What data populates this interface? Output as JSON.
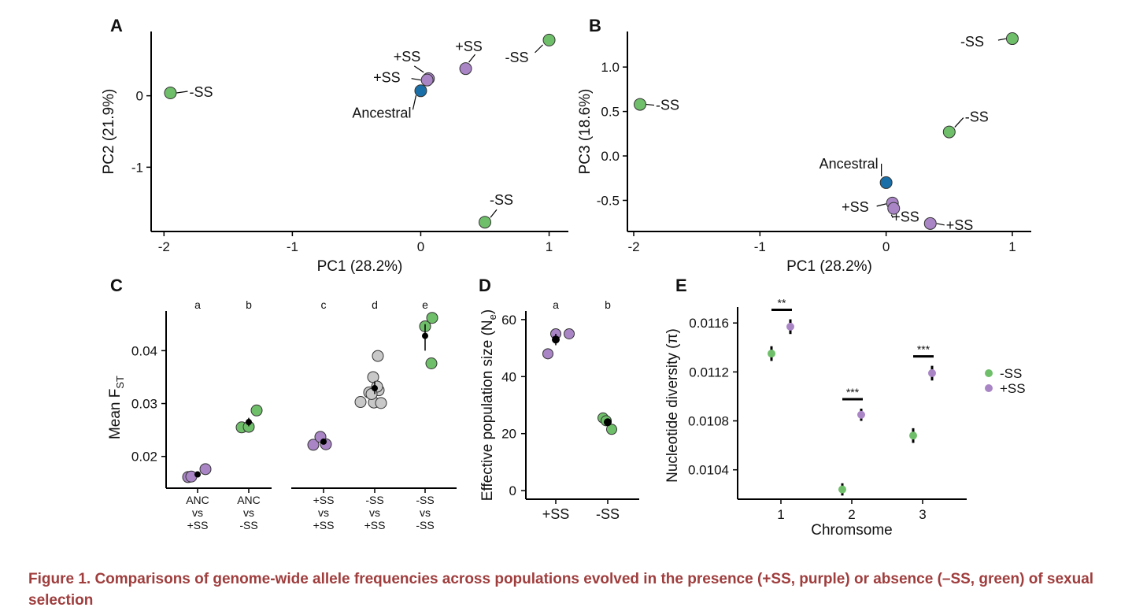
{
  "colors": {
    "minus_ss": "#6fbf6a",
    "plus_ss": "#a985c6",
    "ancestral": "#1a6fa8",
    "nonsex": "#c8c8c8",
    "mean": "#000000",
    "caption": "#a03d3d"
  },
  "caption": {
    "text": "Figure 1.  Comparisons of genome-wide allele frequencies across populations evolved in the presence (+SS, purple) or absence (–SS, green) of sexual selection"
  },
  "chart_data": [
    {
      "panel": "A",
      "type": "scatter",
      "xlabel": "PC1 (28.2%)",
      "ylabel": "PC2 (21.9%)",
      "xlim": [
        -2.1,
        1.15
      ],
      "ylim": [
        -1.9,
        0.9
      ],
      "xticks": [
        -2,
        -1,
        0,
        1
      ],
      "xtick_labels": [
        "-2",
        "-1",
        "0",
        "1"
      ],
      "yticks": [
        0,
        -1
      ],
      "ytick_labels": [
        "0",
        "-1"
      ],
      "points": [
        {
          "x": -1.95,
          "y": 0.04,
          "group": "minus_ss",
          "label": "-SS"
        },
        {
          "x": 1.0,
          "y": 0.78,
          "group": "minus_ss",
          "label": "-SS"
        },
        {
          "x": 0.5,
          "y": -1.77,
          "group": "minus_ss",
          "label": "-SS"
        },
        {
          "x": 0.35,
          "y": 0.38,
          "group": "plus_ss",
          "label": "+SS"
        },
        {
          "x": 0.06,
          "y": 0.24,
          "group": "plus_ss",
          "label": "+SS"
        },
        {
          "x": 0.05,
          "y": 0.22,
          "group": "plus_ss",
          "label": "+SS"
        },
        {
          "x": 0.0,
          "y": 0.07,
          "group": "ancestral",
          "label": "Ancestral"
        }
      ]
    },
    {
      "panel": "B",
      "type": "scatter",
      "xlabel": "PC1 (28.2%)",
      "ylabel": "PC3 (18.6%)",
      "xlim": [
        -2.05,
        1.15
      ],
      "ylim": [
        -0.85,
        1.4
      ],
      "xticks": [
        -2,
        -1,
        0,
        1
      ],
      "xtick_labels": [
        "-2",
        "-1",
        "0",
        "1"
      ],
      "yticks": [
        1.0,
        0.5,
        0.0,
        -0.5
      ],
      "ytick_labels": [
        "1.0",
        "0.5",
        "0.0",
        "-0.5"
      ],
      "points": [
        {
          "x": -1.95,
          "y": 0.58,
          "group": "minus_ss",
          "label": "-SS"
        },
        {
          "x": 1.0,
          "y": 1.32,
          "group": "minus_ss",
          "label": "-SS"
        },
        {
          "x": 0.5,
          "y": 0.27,
          "group": "minus_ss",
          "label": "-SS"
        },
        {
          "x": 0.05,
          "y": -0.53,
          "group": "plus_ss",
          "label": "+SS"
        },
        {
          "x": 0.06,
          "y": -0.59,
          "group": "plus_ss",
          "label": "+SS"
        },
        {
          "x": 0.35,
          "y": -0.76,
          "group": "plus_ss",
          "label": "+SS"
        },
        {
          "x": 0.0,
          "y": -0.3,
          "group": "ancestral",
          "label": "Ancestral"
        }
      ]
    },
    {
      "panel": "C",
      "type": "scatter",
      "ylabel": "Mean F",
      "ylabel_sub": "ST",
      "ylim": [
        0.014,
        0.0475
      ],
      "yticks": [
        0.02,
        0.03,
        0.04
      ],
      "ytick_labels": [
        "0.02",
        "0.03",
        "0.04"
      ],
      "categories": [
        {
          "label": [
            "ANC",
            "vs",
            "+SS"
          ],
          "letter": "a",
          "mean": 0.0166,
          "err": [
            0.0162,
            0.017
          ],
          "points": [
            {
              "v": 0.0161,
              "g": "plus_ss"
            },
            {
              "v": 0.0162,
              "g": "plus_ss"
            },
            {
              "v": 0.0176,
              "g": "plus_ss"
            }
          ]
        },
        {
          "label": [
            "ANC",
            "vs",
            "-SS"
          ],
          "letter": "b",
          "mean": 0.0265,
          "err": [
            0.0257,
            0.0273
          ],
          "points": [
            {
              "v": 0.0255,
              "g": "minus_ss"
            },
            {
              "v": 0.0256,
              "g": "minus_ss"
            },
            {
              "v": 0.0287,
              "g": "minus_ss"
            }
          ]
        },
        {
          "label": [
            "+SS",
            "vs",
            "+SS"
          ],
          "letter": "c",
          "mean": 0.0228,
          "err": [
            0.0224,
            0.0232
          ],
          "points": [
            {
              "v": 0.0222,
              "g": "plus_ss"
            },
            {
              "v": 0.0223,
              "g": "plus_ss"
            },
            {
              "v": 0.0237,
              "g": "plus_ss"
            }
          ]
        },
        {
          "label": [
            "-SS",
            "vs",
            "+SS"
          ],
          "letter": "d",
          "mean": 0.0329,
          "err": [
            0.0318,
            0.0341
          ],
          "points": [
            {
              "v": 0.039,
              "g": "nonsex"
            },
            {
              "v": 0.035,
              "g": "nonsex"
            },
            {
              "v": 0.034,
              "g": "nonsex"
            },
            {
              "v": 0.0332,
              "g": "nonsex"
            },
            {
              "v": 0.0321,
              "g": "nonsex"
            },
            {
              "v": 0.0303,
              "g": "nonsex"
            },
            {
              "v": 0.0302,
              "g": "nonsex"
            },
            {
              "v": 0.0301,
              "g": "nonsex"
            },
            {
              "v": 0.0318,
              "g": "nonsex"
            }
          ]
        },
        {
          "label": [
            "-SS",
            "vs",
            "-SS"
          ],
          "letter": "e",
          "mean": 0.0428,
          "err": [
            0.04,
            0.045
          ],
          "points": [
            {
              "v": 0.0446,
              "g": "minus_ss"
            },
            {
              "v": 0.0462,
              "g": "minus_ss"
            },
            {
              "v": 0.0376,
              "g": "minus_ss"
            }
          ]
        }
      ]
    },
    {
      "panel": "D",
      "type": "scatter",
      "ylabel": "Effective population size (N",
      "ylabel_sub": "e",
      "ylabel_end": ")",
      "ylim": [
        -3,
        63
      ],
      "yticks": [
        0,
        20,
        40,
        60
      ],
      "ytick_labels": [
        "0",
        "20",
        "40",
        "60"
      ],
      "categories": [
        {
          "label": "+SS",
          "letter": "a",
          "mean": 53,
          "err": [
            51,
            55
          ],
          "points": [
            {
              "v": 55,
              "g": "plus_ss"
            },
            {
              "v": 48,
              "g": "plus_ss"
            },
            {
              "v": 55,
              "g": "plus_ss"
            }
          ]
        },
        {
          "label": "-SS",
          "letter": "b",
          "mean": 24,
          "err": [
            23,
            25
          ],
          "points": [
            {
              "v": 25.5,
              "g": "minus_ss"
            },
            {
              "v": 24.5,
              "g": "minus_ss"
            },
            {
              "v": 21.5,
              "g": "minus_ss"
            }
          ]
        }
      ]
    },
    {
      "panel": "E",
      "type": "scatter",
      "xlabel": "Chromsome",
      "ylabel": "Nucleotide diversity (π)",
      "ylim": [
        0.01016,
        0.01173
      ],
      "yticks": [
        0.0104,
        0.0108,
        0.0112,
        0.0116
      ],
      "ytick_labels": [
        "0.0104",
        "0.0108",
        "0.0112",
        "0.0116"
      ],
      "categories": [
        "1",
        "2",
        "3"
      ],
      "series": [
        {
          "name": "-SS",
          "group": "minus_ss",
          "values": [
            0.01135,
            0.01024,
            0.01068
          ],
          "err": [
            6e-05,
            5e-05,
            6e-05
          ]
        },
        {
          "name": "+SS",
          "group": "plus_ss",
          "values": [
            0.01157,
            0.01085,
            0.01119
          ],
          "err": [
            6e-05,
            5e-05,
            6e-05
          ]
        }
      ],
      "significance": [
        "**",
        "***",
        "***"
      ],
      "legend_position": "right"
    }
  ]
}
